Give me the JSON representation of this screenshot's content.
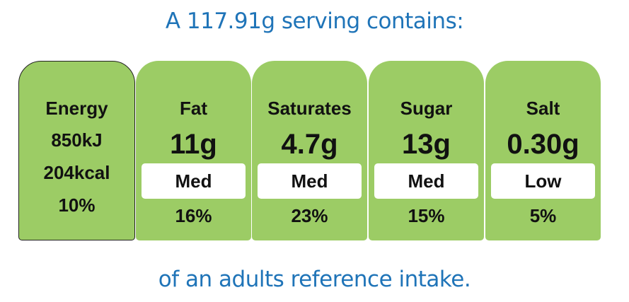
{
  "header": {
    "title": "A 117.91g serving contains:"
  },
  "energy": {
    "label": "Energy",
    "kj": "850kJ",
    "kcal": "204kcal",
    "percent": "10%"
  },
  "nutrients": [
    {
      "label": "Fat",
      "amount": "11g",
      "level": "Med",
      "percent": "16%"
    },
    {
      "label": "Saturates",
      "amount": "4.7g",
      "level": "Med",
      "percent": "23%"
    },
    {
      "label": "Sugar",
      "amount": "13g",
      "level": "Med",
      "percent": "15%"
    },
    {
      "label": "Salt",
      "amount": "0.30g",
      "level": "Low",
      "percent": "5%"
    }
  ],
  "footer": {
    "text": "of an adults reference intake."
  }
}
